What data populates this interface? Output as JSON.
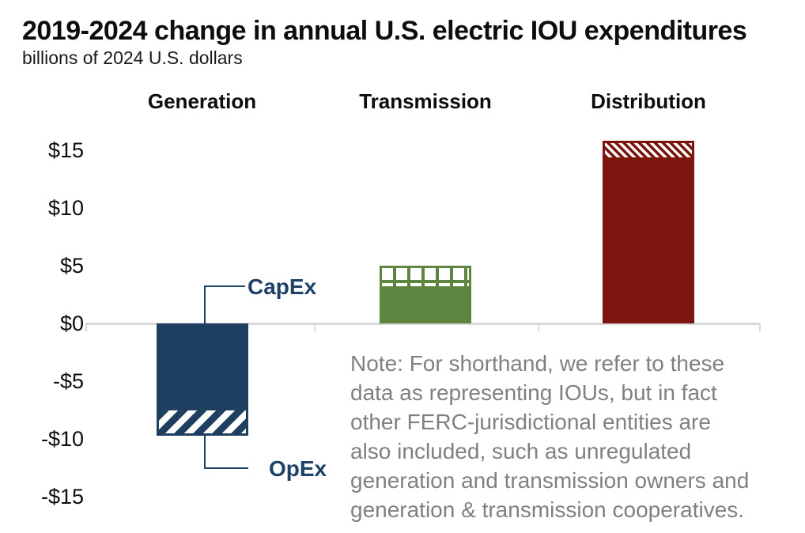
{
  "title": "2019-2024 change in annual U.S. electric IOU expenditures",
  "subtitle": "billions of 2024 U.S. dollars",
  "colors": {
    "bar_colors": [
      "#1f3f60",
      "#5e8540",
      "#7b150e"
    ],
    "axis_line": "#d9d9d9",
    "callout": "#1f4067",
    "note_text": "#808080",
    "title_text": "#0d0d0d"
  },
  "chart_data": {
    "type": "bar",
    "stacked": true,
    "title": "2019-2024 change in annual U.S. electric IOU expenditures",
    "subtitle": "billions of 2024 U.S. dollars",
    "categories": [
      "Generation",
      "Transmission",
      "Distribution"
    ],
    "series": [
      {
        "name": "CapEx",
        "style": "solid",
        "values": [
          -7.3,
          3.0,
          14.2
        ]
      },
      {
        "name": "OpEx",
        "style": "hatched",
        "values": [
          -2.4,
          2.0,
          1.6
        ]
      }
    ],
    "totals": [
      -9.7,
      5.0,
      15.8
    ],
    "hatch_styles": [
      "diagonal-up",
      "grid",
      "diagonal-down"
    ],
    "ylabel": "billions of 2024 U.S. dollars",
    "ylim": [
      -15,
      15
    ],
    "ytick_values": [
      15,
      10,
      5,
      0,
      -5,
      -10,
      -15
    ],
    "ytick_labels": [
      "$15",
      "$10",
      "$5",
      "$0",
      "-$5",
      "-$10",
      "-$15"
    ],
    "grid": false,
    "legend_position": "none",
    "annotations": [
      "CapEx",
      "OpEx"
    ]
  },
  "callouts": {
    "capex": "CapEx",
    "opex": "OpEx"
  },
  "note": {
    "lines": [
      "Note: For shorthand, we refer to these",
      "data as representing IOUs, but in fact",
      "other FERC-jurisdictional entities are",
      "also included, such as unregulated",
      "generation and transmission owners and",
      "generation & transmission cooperatives."
    ]
  }
}
